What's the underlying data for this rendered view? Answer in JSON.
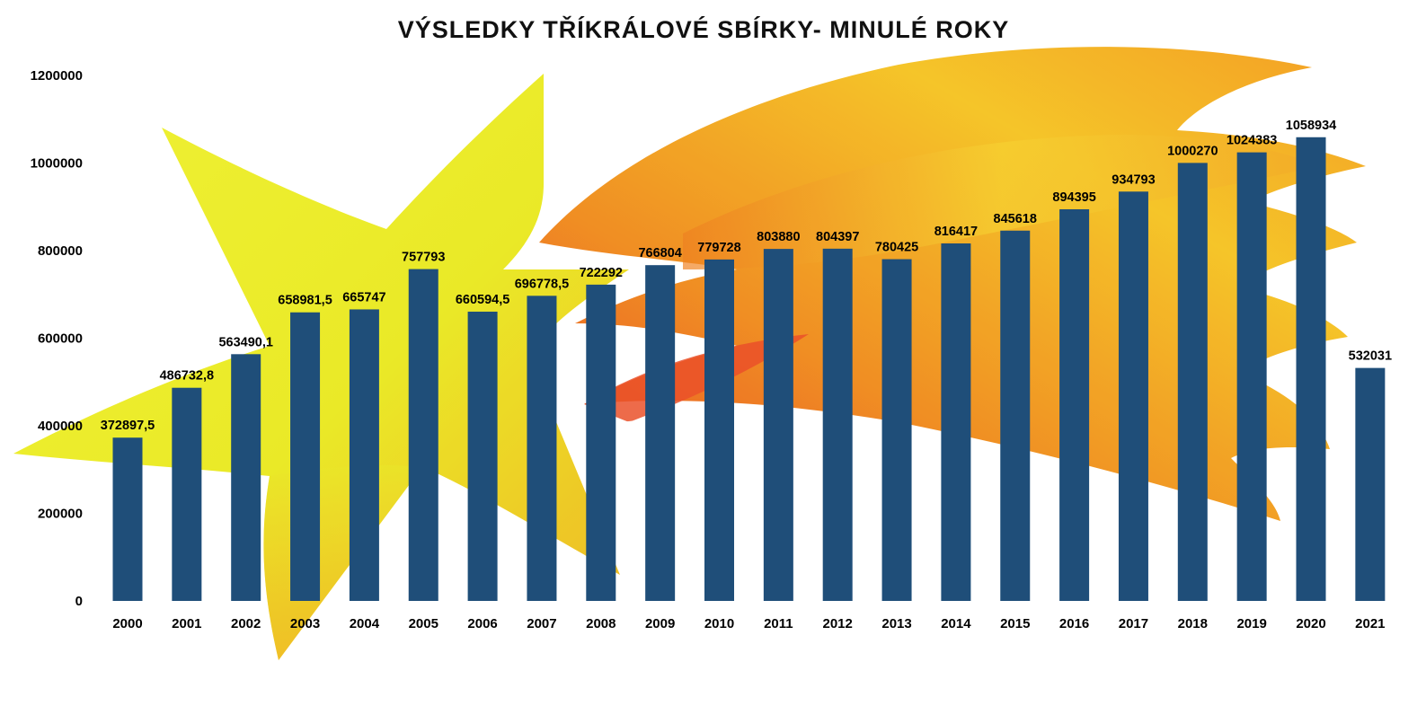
{
  "chart_data": {
    "type": "bar",
    "title": "VÝSLEDKY TŘÍKRÁLOVÉ SBÍRKY- MINULÉ ROKY",
    "xlabel": "",
    "ylabel": "",
    "ylim": [
      0,
      1200000
    ],
    "y_ticks": [
      "0",
      "200000",
      "400000",
      "600000",
      "800000",
      "1000000",
      "1200000"
    ],
    "categories": [
      "2000",
      "2001",
      "2002",
      "2003",
      "2004",
      "2005",
      "2006",
      "2007",
      "2008",
      "2009",
      "2010",
      "2011",
      "2012",
      "2013",
      "2014",
      "2015",
      "2016",
      "2017",
      "2018",
      "2019",
      "2020",
      "2021"
    ],
    "values": [
      372897.5,
      486732.8,
      563490.1,
      658981.5,
      665747,
      757793,
      660594.5,
      696778.5,
      722292,
      766804,
      779728,
      803880,
      804397,
      780425,
      816417,
      845618,
      894395,
      934793,
      1000270,
      1024383,
      1058934,
      532031
    ],
    "data_labels": [
      "372897,5",
      "486732,8",
      "563490,1",
      "658981,5",
      "665747",
      "757793",
      "660594,5",
      "696778,5",
      "722292",
      "766804",
      "779728",
      "803880",
      "804397",
      "780425",
      "816417",
      "845618",
      "894395",
      "934793",
      "1000270",
      "1024383",
      "1058934",
      "532031"
    ],
    "grid": false,
    "legend": "none",
    "colors": {
      "bar": "#1f4e79",
      "background_star_yellow": "#e6ec1e",
      "background_star_orange": "#f29a1a",
      "background_star_red": "#e8401c"
    }
  }
}
